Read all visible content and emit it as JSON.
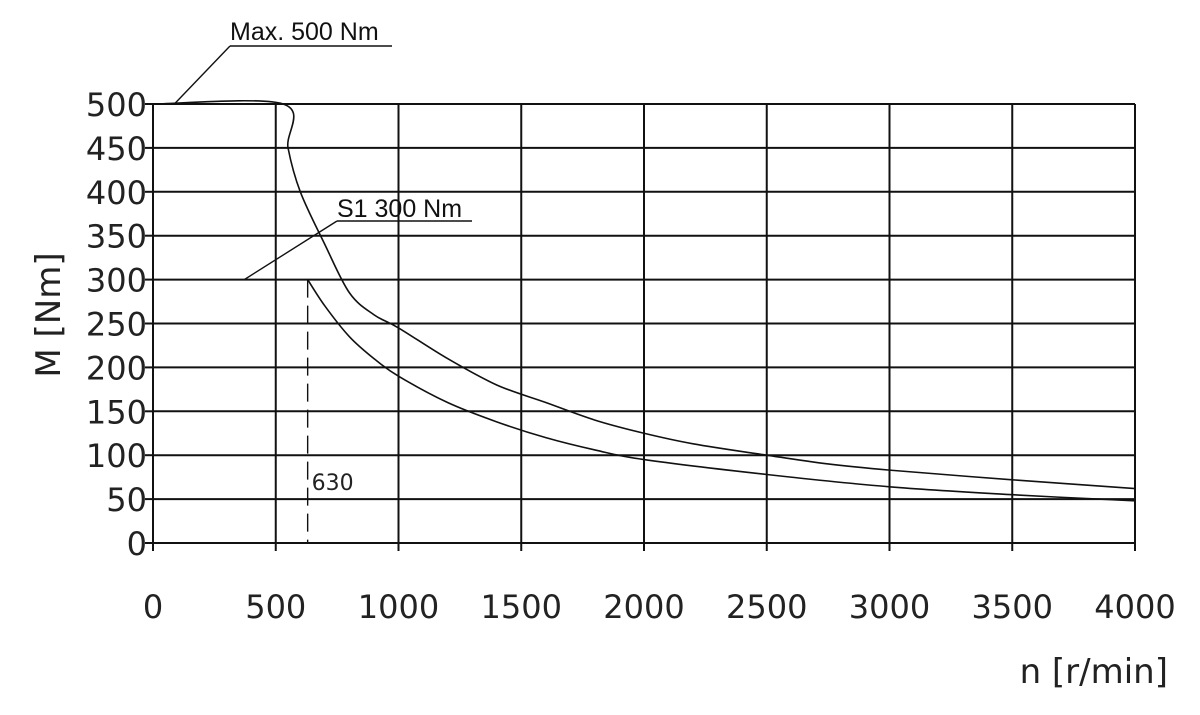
{
  "chart_data": {
    "type": "line",
    "title": "",
    "xlabel": "n [r/min]",
    "ylabel": "M [Nm]",
    "xlim": [
      0,
      4000
    ],
    "ylim": [
      0,
      500
    ],
    "x_ticks": [
      0,
      500,
      1000,
      1500,
      2000,
      2500,
      3000,
      3500,
      4000
    ],
    "y_ticks": [
      0,
      50,
      100,
      150,
      200,
      250,
      300,
      350,
      400,
      450,
      500
    ],
    "grid": true,
    "series": [
      {
        "points": [
          [
            0,
            500
          ],
          [
            530,
            500
          ],
          [
            550,
            450
          ],
          [
            600,
            400
          ],
          [
            700,
            340
          ],
          [
            800,
            285
          ],
          [
            900,
            260
          ],
          [
            1000,
            245
          ],
          [
            1200,
            210
          ],
          [
            1400,
            180
          ],
          [
            1600,
            160
          ],
          [
            1800,
            140
          ],
          [
            2000,
            125
          ],
          [
            2200,
            113
          ],
          [
            2500,
            100
          ],
          [
            2750,
            90
          ],
          [
            3000,
            83
          ],
          [
            3500,
            72
          ],
          [
            4000,
            62
          ]
        ]
      },
      {
        "points": [
          [
            630,
            300
          ],
          [
            700,
            270
          ],
          [
            800,
            235
          ],
          [
            900,
            210
          ],
          [
            1000,
            190
          ],
          [
            1200,
            160
          ],
          [
            1400,
            138
          ],
          [
            1600,
            120
          ],
          [
            1800,
            106
          ],
          [
            2000,
            95
          ],
          [
            2500,
            78
          ],
          [
            3000,
            64
          ],
          [
            3500,
            55
          ],
          [
            4000,
            48
          ]
        ]
      }
    ],
    "annotations": [
      {
        "text": "Max. 500 Nm",
        "x": 250,
        "y": 500
      },
      {
        "text": "S1 300 Nm",
        "x": 380,
        "y": 300
      },
      {
        "text": "630",
        "x": 630,
        "y": 0
      }
    ]
  }
}
